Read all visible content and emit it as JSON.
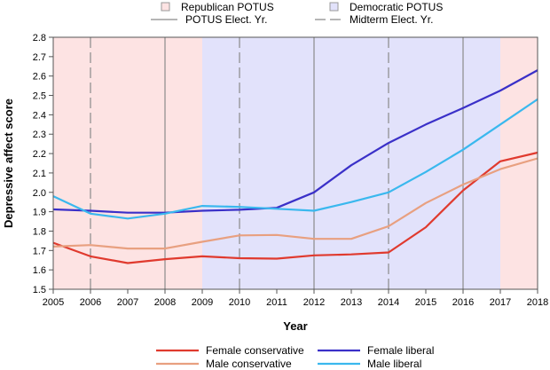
{
  "chart_data": {
    "type": "line",
    "title": "",
    "xlabel": "Year",
    "ylabel": "Depressive affect score",
    "xlim": [
      2005,
      2018
    ],
    "ylim": [
      1.5,
      2.8
    ],
    "x_ticks": [
      2005,
      2006,
      2007,
      2008,
      2009,
      2010,
      2011,
      2012,
      2013,
      2014,
      2015,
      2016,
      2017,
      2018
    ],
    "y_ticks": [
      1.5,
      1.6,
      1.7,
      1.8,
      1.9,
      2.0,
      2.1,
      2.2,
      2.3,
      2.4,
      2.5,
      2.6,
      2.7,
      2.8
    ],
    "y_tick_labels": [
      "1.5",
      "1.6",
      "1.7",
      "1.8",
      "1.9",
      "2.0",
      "2.1",
      "2.2",
      "2.3",
      "2.4",
      "2.5",
      "2.6",
      "2.7",
      "2.8"
    ],
    "grid": false,
    "legend_top": [
      {
        "label": "Republican POTUS",
        "type": "swatch",
        "color": "#fde3e3"
      },
      {
        "label": "Democratic POTUS",
        "type": "swatch",
        "color": "#e2e2fb"
      },
      {
        "label": "POTUS Elect. Yr.",
        "type": "solid-line",
        "color": "#8a8a8a"
      },
      {
        "label": "Midterm Elect. Yr.",
        "type": "dashed-line",
        "color": "#8a8a8a"
      }
    ],
    "shaded_regions": [
      {
        "label": "Republican POTUS",
        "x_start": 2005,
        "x_end": 2009,
        "color": "#fde3e3"
      },
      {
        "label": "Democratic POTUS",
        "x_start": 2009,
        "x_end": 2017,
        "color": "#e2e2fb"
      },
      {
        "label": "Republican POTUS",
        "x_start": 2017,
        "x_end": 2018,
        "color": "#fde3e3"
      }
    ],
    "potus_election_years": [
      2008,
      2012,
      2016
    ],
    "midterm_election_years": [
      2006,
      2010,
      2014
    ],
    "x": [
      2005,
      2006,
      2007,
      2008,
      2009,
      2010,
      2011,
      2012,
      2013,
      2014,
      2015,
      2016,
      2017,
      2018
    ],
    "series": [
      {
        "name": "Female conservative",
        "color": "#e03a2e",
        "values": [
          1.74,
          1.67,
          1.635,
          1.655,
          1.67,
          1.66,
          1.658,
          1.675,
          1.68,
          1.69,
          1.82,
          2.01,
          2.16,
          2.205
        ]
      },
      {
        "name": "Female liberal",
        "color": "#3a30c8",
        "values": [
          1.912,
          1.905,
          1.895,
          1.895,
          1.905,
          1.91,
          1.92,
          2.0,
          2.14,
          2.255,
          2.35,
          2.435,
          2.525,
          2.63
        ]
      },
      {
        "name": "Male conservative",
        "color": "#e8a080",
        "values": [
          1.72,
          1.728,
          1.71,
          1.71,
          1.745,
          1.778,
          1.78,
          1.76,
          1.76,
          1.825,
          1.945,
          2.04,
          2.12,
          2.175
        ]
      },
      {
        "name": "Male liberal",
        "color": "#3ab8ee",
        "values": [
          1.98,
          1.89,
          1.865,
          1.89,
          1.93,
          1.925,
          1.915,
          1.905,
          1.95,
          2.0,
          2.105,
          2.22,
          2.35,
          2.48
        ]
      }
    ],
    "legend_bottom_order": [
      "Female conservative",
      "Female liberal",
      "Male conservative",
      "Male liberal"
    ]
  }
}
